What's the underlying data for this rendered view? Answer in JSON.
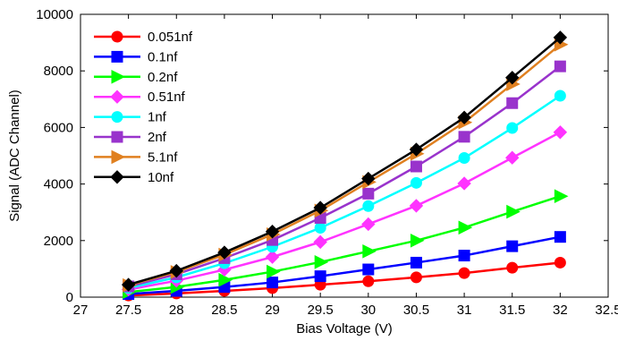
{
  "chart_data": {
    "type": "line",
    "xlabel": "Bias Voltage (V)",
    "ylabel": "Signal (ADC Channel)",
    "xlim": [
      27,
      32.5
    ],
    "ylim": [
      0,
      10000
    ],
    "x_ticks": [
      "27",
      "27.5",
      "28",
      "28.5",
      "29",
      "29.5",
      "30",
      "30.5",
      "31",
      "31.5",
      "32",
      "32.5"
    ],
    "y_ticks": [
      "0",
      "2000",
      "4000",
      "6000",
      "8000",
      "10000"
    ],
    "legend_position": "top-left",
    "grid": false,
    "x": [
      27.5,
      28,
      28.5,
      29,
      29.5,
      30,
      30.5,
      31,
      31.5,
      32
    ],
    "series": [
      {
        "name": "0.051nf",
        "color": "#ff0000",
        "marker": "circle",
        "values": [
          60,
          130,
          220,
          320,
          440,
          560,
          700,
          850,
          1040,
          1220
        ]
      },
      {
        "name": "0.1nf",
        "color": "#0000ff",
        "marker": "square",
        "values": [
          110,
          220,
          360,
          520,
          740,
          980,
          1220,
          1470,
          1800,
          2130
        ]
      },
      {
        "name": "0.2nf",
        "color": "#00ff00",
        "marker": "triangle-right",
        "values": [
          180,
          360,
          610,
          900,
          1240,
          1620,
          2000,
          2460,
          3020,
          3570
        ]
      },
      {
        "name": "0.51nf",
        "color": "#ff33ff",
        "marker": "diamond",
        "values": [
          270,
          580,
          970,
          1420,
          1950,
          2580,
          3230,
          4020,
          4930,
          5830
        ]
      },
      {
        "name": "1nf",
        "color": "#00ffff",
        "marker": "circle",
        "values": [
          320,
          700,
          1200,
          1780,
          2450,
          3220,
          4040,
          4920,
          5980,
          7120
        ]
      },
      {
        "name": "2nf",
        "color": "#9933cc",
        "marker": "square",
        "values": [
          380,
          810,
          1380,
          2020,
          2800,
          3660,
          4620,
          5670,
          6860,
          8160
        ]
      },
      {
        "name": "5.1nf",
        "color": "#e08020",
        "marker": "triangle-right",
        "values": [
          420,
          890,
          1500,
          2220,
          3060,
          4070,
          5070,
          6180,
          7530,
          8930
        ]
      },
      {
        "name": "10nf",
        "color": "#000000",
        "marker": "diamond",
        "values": [
          440,
          930,
          1580,
          2320,
          3160,
          4190,
          5220,
          6350,
          7760,
          9180
        ]
      }
    ]
  }
}
